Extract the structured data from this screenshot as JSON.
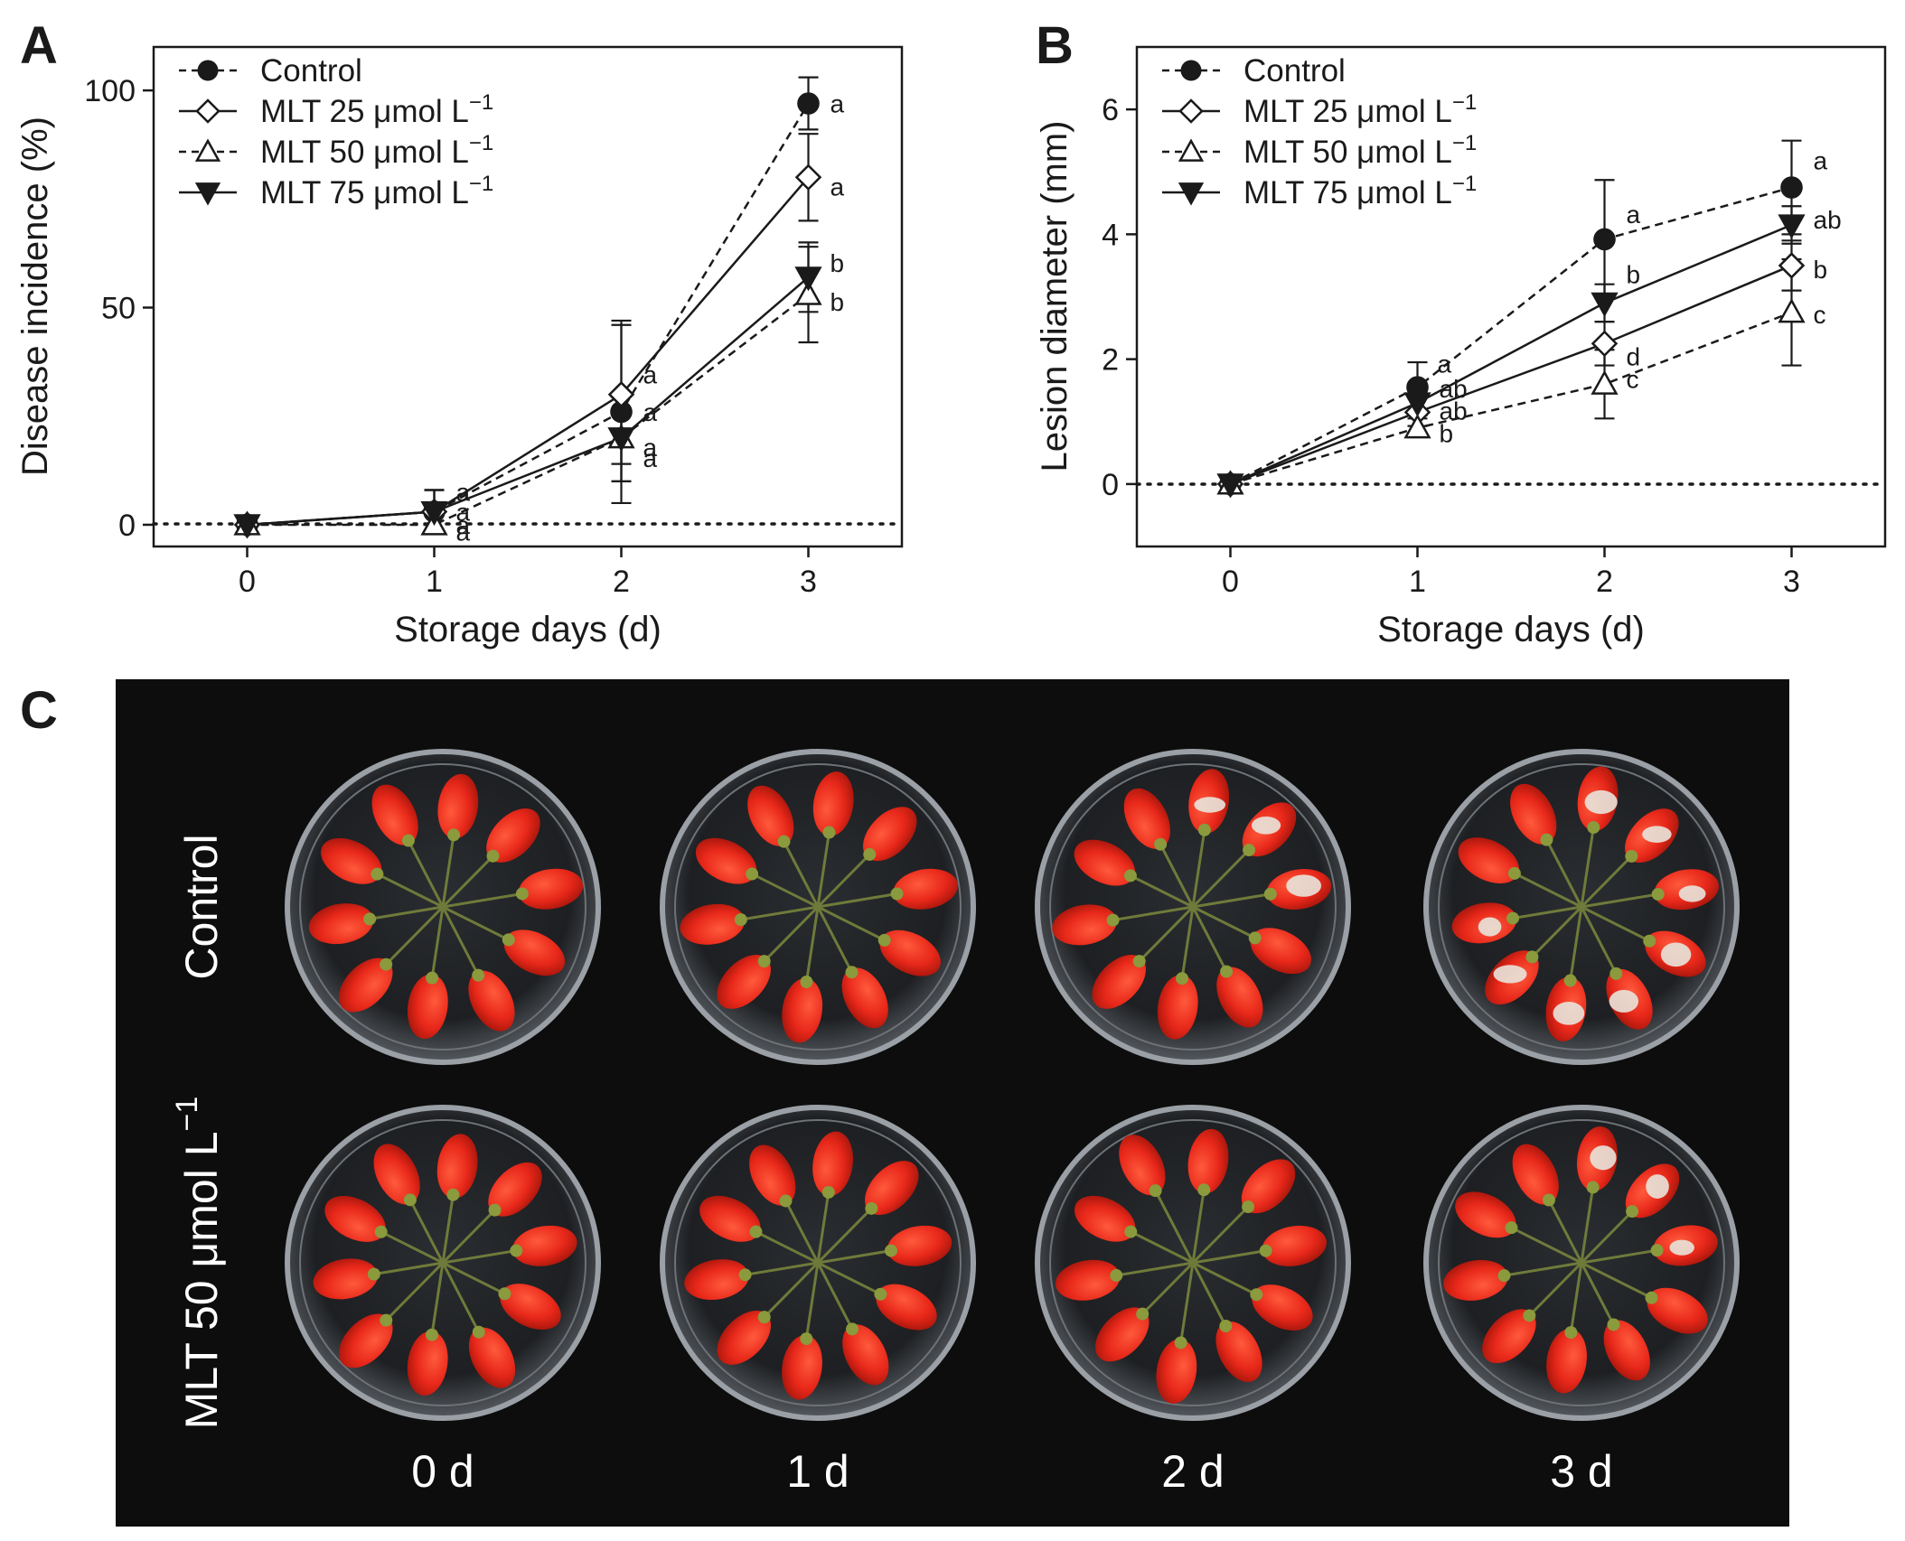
{
  "panels": {
    "a": "A",
    "b": "B",
    "c": "C"
  },
  "legend": [
    {
      "label": "Control",
      "style": "dashed",
      "marker": "circle",
      "fill": "#1a1a1a"
    },
    {
      "label": "MLT 25 μmol L",
      "sup": "−1",
      "style": "solid",
      "marker": "diamond",
      "fill": "#ffffff"
    },
    {
      "label": "MLT 50 μmol L",
      "sup": "−1",
      "style": "dashed",
      "marker": "triangle-up",
      "fill": "#ffffff"
    },
    {
      "label": "MLT 75 μmol L",
      "sup": "−1",
      "style": "solid",
      "marker": "triangle-down",
      "fill": "#1a1a1a"
    }
  ],
  "chart_data": [
    {
      "type": "line",
      "panel": "A",
      "xlabel": "Storage days (d)",
      "ylabel": "Disease incidence (%)",
      "x": [
        0,
        1,
        2,
        3
      ],
      "xlim": [
        -0.5,
        3.5
      ],
      "ylim": [
        -5,
        110
      ],
      "yticks": [
        0,
        50,
        100
      ],
      "zero_line": true,
      "series": [
        {
          "name": "Control",
          "values": [
            0,
            3,
            26,
            97
          ],
          "errors": [
            0,
            5,
            21,
            6
          ],
          "letters": [
            "",
            "a",
            "a",
            "a"
          ]
        },
        {
          "name": "MLT 25 μmol L⁻¹",
          "values": [
            0,
            3,
            30,
            80
          ],
          "errors": [
            0,
            5,
            16,
            10
          ],
          "letters": [
            "",
            "a",
            "a",
            "a"
          ]
        },
        {
          "name": "MLT 50 μmol L⁻¹",
          "values": [
            0,
            0,
            20,
            53
          ],
          "errors": [
            0,
            0,
            10,
            11
          ],
          "letters": [
            "",
            "a",
            "a",
            "b"
          ]
        },
        {
          "name": "MLT 75 μmol L⁻¹",
          "values": [
            0,
            3,
            20,
            57
          ],
          "errors": [
            0,
            5,
            10,
            8
          ],
          "letters": [
            "",
            "a",
            "a",
            "b"
          ]
        }
      ]
    },
    {
      "type": "line",
      "panel": "B",
      "xlabel": "Storage days (d)",
      "ylabel": "Lesion diameter (mm)",
      "x": [
        0,
        1,
        2,
        3
      ],
      "xlim": [
        -0.5,
        3.5
      ],
      "ylim": [
        -1,
        7
      ],
      "yticks": [
        0,
        2,
        4,
        6
      ],
      "zero_line": true,
      "series": [
        {
          "name": "Control",
          "values": [
            0,
            1.55,
            3.92,
            4.75
          ],
          "errors": [
            0,
            0.4,
            0.95,
            0.75
          ],
          "letters": [
            "",
            "a",
            "a",
            "a"
          ]
        },
        {
          "name": "MLT 25 μmol L⁻¹",
          "values": [
            0,
            1.15,
            2.25,
            3.5
          ],
          "errors": [
            0,
            0.22,
            0.35,
            0.4
          ],
          "letters": [
            "",
            "ab",
            "d",
            "b"
          ]
        },
        {
          "name": "MLT 50 μmol L⁻¹",
          "values": [
            0,
            0.9,
            1.6,
            2.75
          ],
          "errors": [
            0,
            0.15,
            0.55,
            0.85
          ],
          "letters": [
            "",
            "b",
            "c",
            "c"
          ]
        },
        {
          "name": "MLT 75 μmol L⁻¹",
          "values": [
            0,
            1.3,
            2.9,
            4.15
          ],
          "errors": [
            0,
            0.2,
            0.3,
            0.3
          ],
          "letters": [
            "",
            "ab",
            "b",
            "ab"
          ]
        }
      ]
    }
  ],
  "photo": {
    "rows": [
      {
        "label": "Control"
      },
      {
        "label": "MLT 50 μmol L",
        "sup": "−1"
      }
    ],
    "columns": [
      "0 d",
      "1 d",
      "2 d",
      "3 d"
    ],
    "background": "#0d0d0d",
    "fruit_color": "#e8281a",
    "mold_color": "#e8e4dc",
    "mold_spots": {
      "control": [
        0,
        0,
        3,
        8
      ],
      "mlt50": [
        0,
        0,
        0,
        3
      ]
    }
  }
}
